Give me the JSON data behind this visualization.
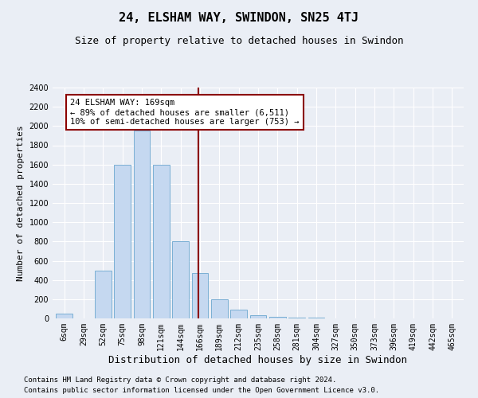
{
  "title": "24, ELSHAM WAY, SWINDON, SN25 4TJ",
  "subtitle": "Size of property relative to detached houses in Swindon",
  "xlabel": "Distribution of detached houses by size in Swindon",
  "ylabel": "Number of detached properties",
  "footer_lines": [
    "Contains HM Land Registry data © Crown copyright and database right 2024.",
    "Contains public sector information licensed under the Open Government Licence v3.0."
  ],
  "categories": [
    "6sqm",
    "29sqm",
    "52sqm",
    "75sqm",
    "98sqm",
    "121sqm",
    "144sqm",
    "166sqm",
    "189sqm",
    "212sqm",
    "235sqm",
    "258sqm",
    "281sqm",
    "304sqm",
    "327sqm",
    "350sqm",
    "373sqm",
    "396sqm",
    "419sqm",
    "442sqm",
    "465sqm"
  ],
  "values": [
    50,
    0,
    500,
    1600,
    1950,
    1600,
    800,
    475,
    200,
    90,
    30,
    20,
    5,
    5,
    0,
    0,
    0,
    0,
    0,
    0,
    0
  ],
  "bar_color": "#c5d8f0",
  "bar_edge_color": "#7aafd4",
  "vline_x_index": 7,
  "vline_color": "#8b0000",
  "annotation_text": "24 ELSHAM WAY: 169sqm\n← 89% of detached houses are smaller (6,511)\n10% of semi-detached houses are larger (753) →",
  "annotation_box_color": "white",
  "annotation_box_edge": "#8b0000",
  "ylim": [
    0,
    2400
  ],
  "yticks": [
    0,
    200,
    400,
    600,
    800,
    1000,
    1200,
    1400,
    1600,
    1800,
    2000,
    2200,
    2400
  ],
  "bg_color": "#eaeef5",
  "plot_bg_color": "#eaeef5",
  "grid_color": "white",
  "title_fontsize": 11,
  "subtitle_fontsize": 9,
  "xlabel_fontsize": 9,
  "ylabel_fontsize": 8,
  "tick_fontsize": 7,
  "footer_fontsize": 6.5,
  "ann_fontsize": 7.5
}
